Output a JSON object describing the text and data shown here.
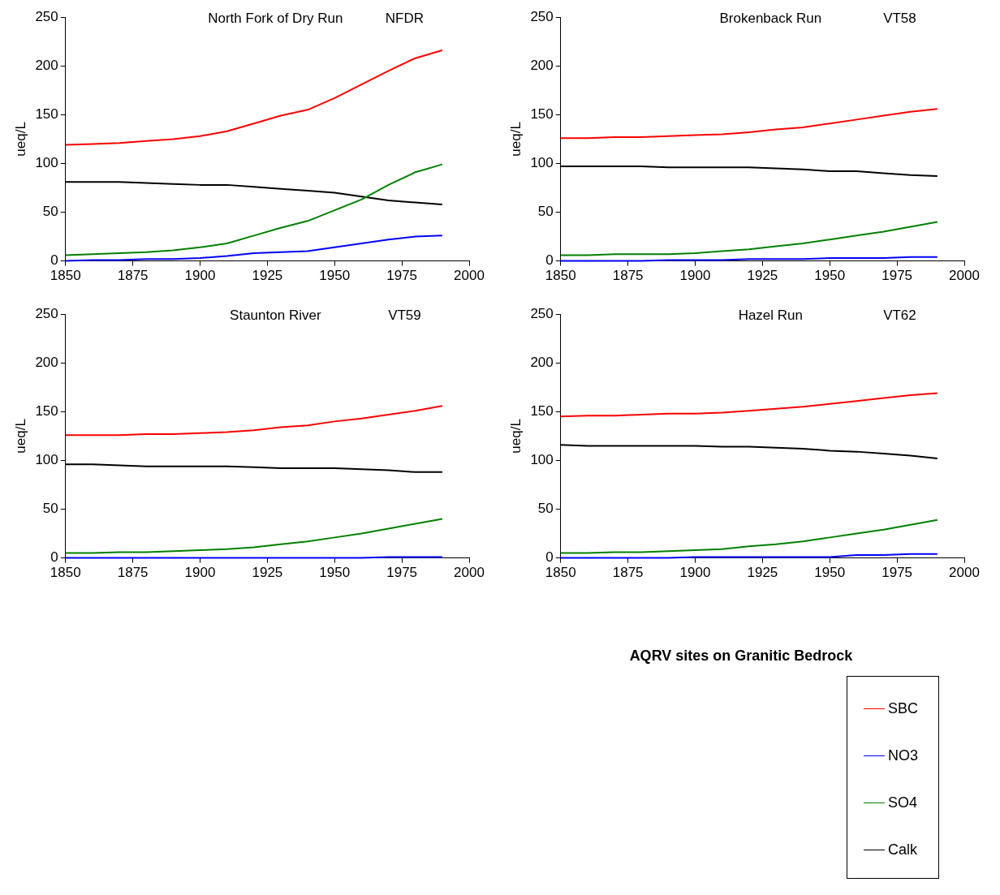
{
  "chart_data": [
    {
      "type": "line",
      "title": "North Fork of Dry Run",
      "subtitle": "NFDR",
      "ylabel": "ueq/L",
      "x": [
        1850,
        1860,
        1870,
        1880,
        1890,
        1900,
        1910,
        1920,
        1930,
        1940,
        1950,
        1960,
        1970,
        1980,
        1990
      ],
      "xlim": [
        1850,
        2000
      ],
      "xticks": [
        1850,
        1875,
        1900,
        1925,
        1950,
        1975,
        2000
      ],
      "ylim": [
        0,
        250
      ],
      "yticks": [
        0,
        50,
        100,
        150,
        200,
        250
      ],
      "grid": false,
      "legend": false,
      "marker": "none",
      "series": [
        {
          "color": "#ff0000",
          "values": [
            119,
            120,
            121,
            123,
            125,
            128,
            133,
            141,
            149,
            155,
            167,
            181,
            195,
            208,
            216
          ]
        },
        {
          "color": "#0000ff",
          "values": [
            0,
            1,
            1,
            2,
            2,
            3,
            5,
            8,
            9,
            10,
            14,
            18,
            22,
            25,
            26
          ]
        },
        {
          "color": "#008000",
          "values": [
            6,
            7,
            8,
            9,
            11,
            14,
            18,
            26,
            34,
            41,
            52,
            63,
            78,
            91,
            99
          ]
        },
        {
          "color": "#000000",
          "values": [
            81,
            81,
            81,
            80,
            79,
            78,
            78,
            76,
            74,
            72,
            70,
            66,
            62,
            60,
            58
          ]
        }
      ]
    },
    {
      "type": "line",
      "title": "Brokenback Run",
      "subtitle": "VT58",
      "ylabel": "ueq/L",
      "x": [
        1850,
        1860,
        1870,
        1880,
        1890,
        1900,
        1910,
        1920,
        1930,
        1940,
        1950,
        1960,
        1970,
        1980,
        1990
      ],
      "xlim": [
        1850,
        2000
      ],
      "xticks": [
        1850,
        1875,
        1900,
        1925,
        1950,
        1975,
        2000
      ],
      "ylim": [
        0,
        250
      ],
      "yticks": [
        0,
        50,
        100,
        150,
        200,
        250
      ],
      "grid": false,
      "legend": false,
      "marker": "none",
      "series": [
        {
          "color": "#ff0000",
          "values": [
            126,
            126,
            127,
            127,
            128,
            129,
            130,
            132,
            135,
            137,
            141,
            145,
            149,
            153,
            156
          ]
        },
        {
          "color": "#0000ff",
          "values": [
            0,
            0,
            0,
            0,
            1,
            1,
            1,
            2,
            2,
            2,
            3,
            3,
            3,
            4,
            4
          ]
        },
        {
          "color": "#008000",
          "values": [
            6,
            6,
            7,
            7,
            7,
            8,
            10,
            12,
            15,
            18,
            22,
            26,
            30,
            35,
            40
          ]
        },
        {
          "color": "#000000",
          "values": [
            97,
            97,
            97,
            97,
            96,
            96,
            96,
            96,
            95,
            94,
            92,
            92,
            90,
            88,
            87
          ]
        }
      ]
    },
    {
      "type": "line",
      "title": "Staunton River",
      "subtitle": "VT59",
      "ylabel": "ueq/L",
      "x": [
        1850,
        1860,
        1870,
        1880,
        1890,
        1900,
        1910,
        1920,
        1930,
        1940,
        1950,
        1960,
        1970,
        1980,
        1990
      ],
      "xlim": [
        1850,
        2000
      ],
      "xticks": [
        1850,
        1875,
        1900,
        1925,
        1950,
        1975,
        2000
      ],
      "ylim": [
        0,
        250
      ],
      "yticks": [
        0,
        50,
        100,
        150,
        200,
        250
      ],
      "grid": false,
      "legend": false,
      "marker": "none",
      "series": [
        {
          "color": "#ff0000",
          "values": [
            126,
            126,
            126,
            127,
            127,
            128,
            129,
            131,
            134,
            136,
            140,
            143,
            147,
            151,
            156
          ]
        },
        {
          "color": "#0000ff",
          "values": [
            0,
            0,
            0,
            0,
            0,
            0,
            0,
            0,
            0,
            0,
            0,
            0,
            1,
            1,
            1
          ]
        },
        {
          "color": "#008000",
          "values": [
            5,
            5,
            6,
            6,
            7,
            8,
            9,
            11,
            14,
            17,
            21,
            25,
            30,
            35,
            40
          ]
        },
        {
          "color": "#000000",
          "values": [
            96,
            96,
            95,
            94,
            94,
            94,
            94,
            93,
            92,
            92,
            92,
            91,
            90,
            88,
            88
          ]
        }
      ]
    },
    {
      "type": "line",
      "title": "Hazel Run",
      "subtitle": "VT62",
      "ylabel": "ueq/L",
      "legend_title": "AQRV sites on Granitic Bedrock",
      "x": [
        1850,
        1860,
        1870,
        1880,
        1890,
        1900,
        1910,
        1920,
        1930,
        1940,
        1950,
        1960,
        1970,
        1980,
        1990
      ],
      "xlim": [
        1850,
        2000
      ],
      "xticks": [
        1850,
        1875,
        1900,
        1925,
        1950,
        1975,
        2000
      ],
      "ylim": [
        0,
        250
      ],
      "yticks": [
        0,
        50,
        100,
        150,
        200,
        250
      ],
      "grid": false,
      "legend": "bottom right",
      "marker": "none",
      "series": [
        {
          "name": "SBC",
          "color": "#ff0000",
          "values": [
            145,
            146,
            146,
            147,
            148,
            148,
            149,
            151,
            153,
            155,
            158,
            161,
            164,
            167,
            169
          ]
        },
        {
          "name": "NO3",
          "color": "#0000ff",
          "values": [
            0,
            0,
            0,
            0,
            0,
            1,
            1,
            1,
            1,
            1,
            1,
            3,
            3,
            4,
            4
          ]
        },
        {
          "name": "SO4",
          "color": "#008000",
          "values": [
            5,
            5,
            6,
            6,
            7,
            8,
            9,
            12,
            14,
            17,
            21,
            25,
            29,
            34,
            39
          ]
        },
        {
          "name": "Calk",
          "color": "#000000",
          "values": [
            116,
            115,
            115,
            115,
            115,
            115,
            114,
            114,
            113,
            112,
            110,
            109,
            107,
            105,
            102
          ]
        }
      ]
    }
  ]
}
